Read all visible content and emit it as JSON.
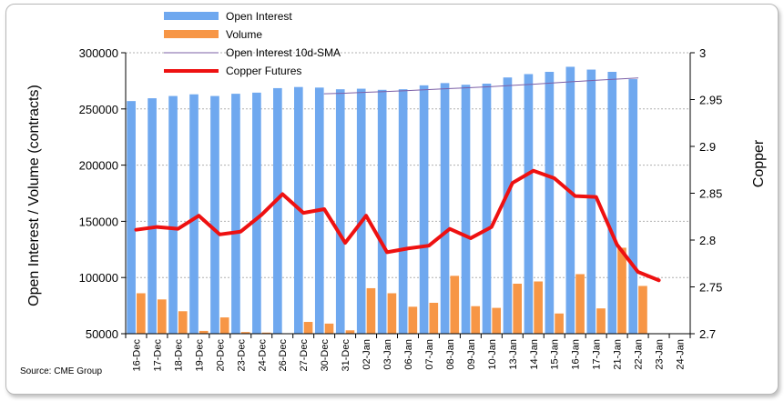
{
  "chart_data": {
    "type": "bar",
    "categories": [
      "16-Dec",
      "17-Dec",
      "18-Dec",
      "19-Dec",
      "20-Dec",
      "23-Dec",
      "24-Dec",
      "26-Dec",
      "27-Dec",
      "30-Dec",
      "31-Dec",
      "02-Jan",
      "03-Jan",
      "06-Jan",
      "07-Jan",
      "08-Jan",
      "09-Jan",
      "10-Jan",
      "13-Jan",
      "14-Jan",
      "15-Jan",
      "16-Jan",
      "17-Jan",
      "21-Jan",
      "22-Jan",
      "23-Jan",
      "24-Jan"
    ],
    "series": [
      {
        "name": "Open Interest",
        "axis": "left",
        "kind": "bar",
        "color": "#6fa8ef",
        "values": [
          257000,
          259500,
          261500,
          263000,
          261500,
          263500,
          264500,
          268500,
          269500,
          269000,
          267500,
          268000,
          267000,
          267500,
          271000,
          273000,
          271500,
          272500,
          278000,
          281000,
          283000,
          287500,
          285000,
          283000,
          276500,
          null,
          null
        ]
      },
      {
        "name": "Volume",
        "axis": "left",
        "kind": "bar",
        "color": "#f79646",
        "values": [
          86000,
          80500,
          70000,
          52500,
          64500,
          51500,
          51000,
          null,
          60500,
          59000,
          53000,
          90500,
          86000,
          74000,
          77500,
          101500,
          74500,
          73000,
          94500,
          96500,
          68000,
          103000,
          72500,
          126500,
          92500,
          null,
          null
        ]
      },
      {
        "name": "Open Interest 10d-SMA",
        "axis": "left",
        "kind": "line",
        "color": "#7b5fa6",
        "values": [
          null,
          null,
          null,
          null,
          null,
          null,
          null,
          null,
          null,
          263500,
          264000,
          264800,
          265500,
          266300,
          267200,
          268100,
          269000,
          269900,
          271000,
          272000,
          273200,
          274400,
          275500,
          276500,
          277500,
          null,
          null
        ]
      },
      {
        "name": "Copper Futures",
        "axis": "right",
        "kind": "line",
        "color": "#ee1111",
        "values": [
          2.811,
          2.814,
          2.812,
          2.826,
          2.806,
          2.809,
          2.827,
          2.849,
          2.829,
          2.833,
          2.797,
          2.826,
          2.787,
          2.791,
          2.794,
          2.812,
          2.802,
          2.814,
          2.861,
          2.874,
          2.866,
          2.847,
          2.846,
          2.795,
          2.766,
          2.757,
          null
        ]
      }
    ],
    "title": "",
    "xlabel": "",
    "ylabel": "Open Interest / Volume (contracts)",
    "y2label": "Copper",
    "ylim": [
      50000,
      300000
    ],
    "y2lim": [
      2.7,
      3.0
    ],
    "yticks": [
      "50000",
      "100000",
      "150000",
      "200000",
      "250000",
      "300000"
    ],
    "y2ticks": [
      "2.7",
      "2.75",
      "2.8",
      "2.85",
      "2.9",
      "2.95",
      "3"
    ],
    "legend_position": "top",
    "grid": "horizontal dashed"
  },
  "legend": {
    "open_interest": "Open Interest",
    "volume": "Volume",
    "sma": "Open Interest 10d-SMA",
    "copper": "Copper Futures"
  },
  "source": "Source: CME Group"
}
